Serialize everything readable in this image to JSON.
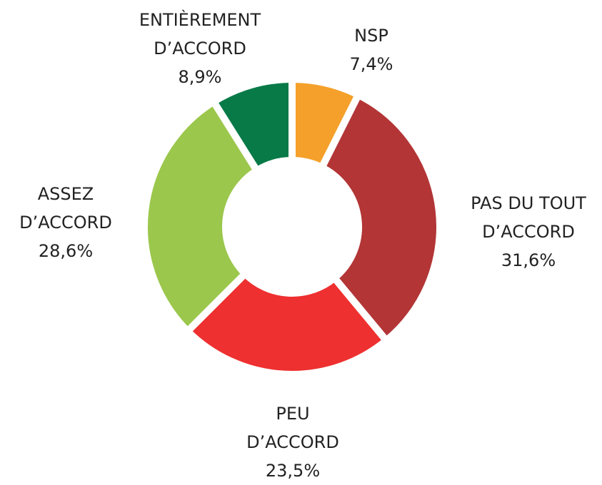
{
  "chart_data": {
    "type": "donut",
    "categories": [
      "NSP",
      "PAS DU TOUT D’ACCORD",
      "PEU D’ACCORD",
      "ASSEZ D’ACCORD",
      "ENTIÈREMENT D’ACCORD"
    ],
    "values": [
      7.4,
      31.6,
      23.5,
      28.6,
      8.9
    ],
    "value_labels": [
      "7,4%",
      "31,6%",
      "23,5%",
      "28,6%",
      "8,9%"
    ],
    "colors": [
      "#f5a02a",
      "#b33536",
      "#ee3030",
      "#9bc74c",
      "#087a47"
    ]
  }
}
